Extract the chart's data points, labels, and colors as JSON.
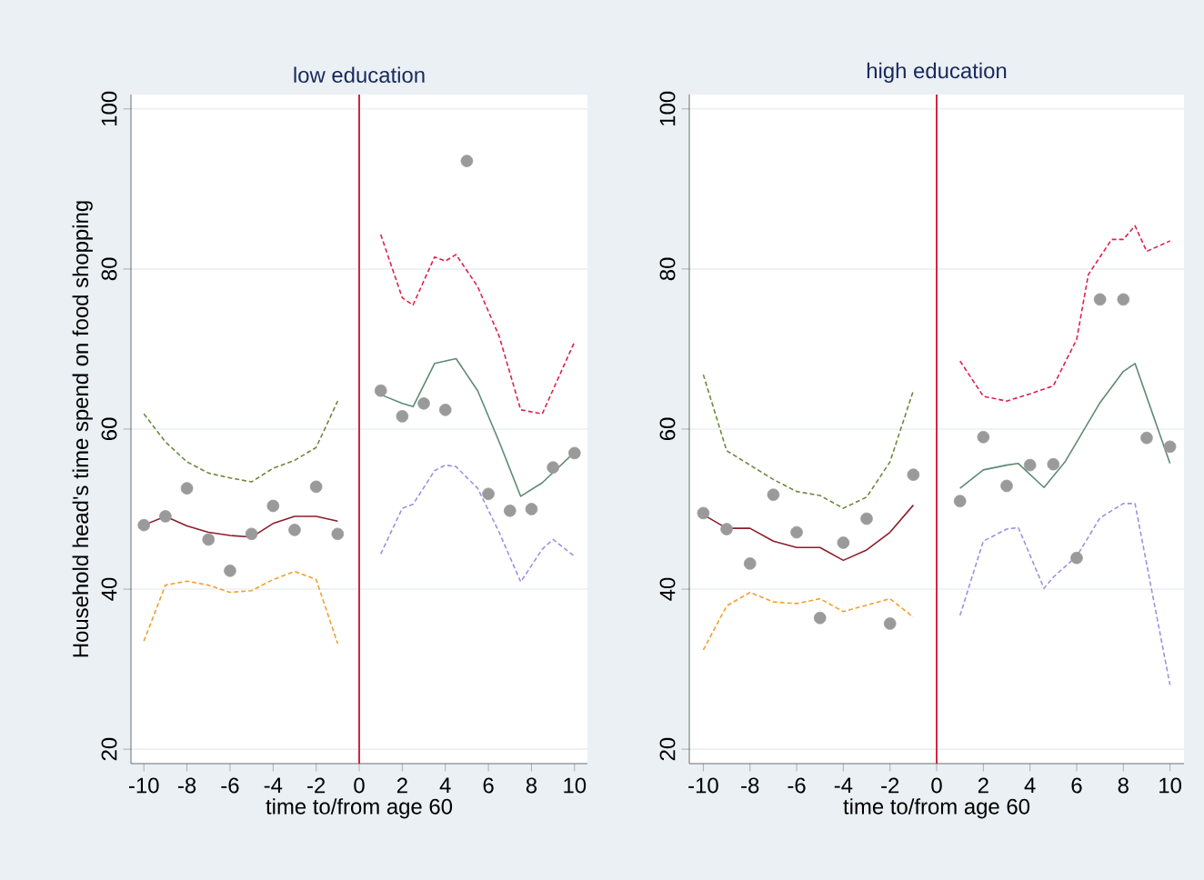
{
  "chart_data": [
    {
      "type": "scatter",
      "title": "low education",
      "xlabel": "time to/from age 60",
      "ylabel": "Household head's time spend on food shopping",
      "xlim": [
        -10.6,
        10.6
      ],
      "ylim": [
        18.2,
        101.8
      ],
      "xticks": [
        -10,
        -8,
        -6,
        -4,
        -2,
        0,
        2,
        4,
        6,
        8,
        10
      ],
      "yticks": [
        20,
        40,
        60,
        80,
        100
      ],
      "grid": "y",
      "ref_lines": [
        {
          "axis": "x",
          "value": 0,
          "color": "#c8102e"
        }
      ],
      "series": [
        {
          "marker": "circle",
          "color": "#9a9a9a",
          "x": [
            -10,
            -9,
            -8,
            -7,
            -6,
            -5,
            -4,
            -3,
            -2,
            -1,
            1,
            2,
            3,
            4,
            5,
            6,
            7,
            8,
            9,
            10
          ],
          "values": [
            48.0,
            49.1,
            52.6,
            46.2,
            42.3,
            46.9,
            50.4,
            47.4,
            52.8,
            46.9,
            64.8,
            61.6,
            63.2,
            62.4,
            93.5,
            51.9,
            49.8,
            50.0,
            55.2,
            57.0
          ]
        },
        {
          "type": "line",
          "marker": "none",
          "line_style": "solid",
          "color": "#8b1e2a",
          "x": [
            -10,
            -9,
            -8,
            -7,
            -6,
            -5,
            -4,
            -3,
            -2,
            -1
          ],
          "values": [
            48.0,
            49.1,
            47.9,
            47.1,
            46.7,
            46.5,
            48.2,
            49.1,
            49.1,
            48.5
          ]
        },
        {
          "type": "line",
          "marker": "none",
          "line_style": "dashed",
          "color": "#6b8a3a",
          "x": [
            -10,
            -9,
            -8,
            -7,
            -6,
            -5,
            -4,
            -3,
            -2,
            -1
          ],
          "values": [
            61.9,
            58.4,
            55.9,
            54.5,
            53.9,
            53.4,
            55.1,
            56.1,
            57.7,
            63.5
          ]
        },
        {
          "type": "line",
          "marker": "none",
          "line_style": "dashed",
          "color": "#f0a030",
          "x": [
            -10,
            -9,
            -8,
            -7,
            -6,
            -5,
            -4,
            -3,
            -2,
            -1
          ],
          "values": [
            33.5,
            40.5,
            41.0,
            40.5,
            39.6,
            39.8,
            41.2,
            42.2,
            41.2,
            33.2
          ]
        },
        {
          "type": "line",
          "marker": "none",
          "line_style": "solid",
          "color": "#5f8a74",
          "x": [
            1,
            2,
            2.5,
            3.5,
            4.5,
            5.5,
            6.5,
            7.5,
            8.5,
            10
          ],
          "values": [
            64.3,
            63.2,
            62.8,
            68.2,
            68.8,
            64.8,
            58.4,
            51.6,
            53.3,
            57.1
          ]
        },
        {
          "type": "line",
          "marker": "none",
          "line_style": "dashed",
          "color": "#e0204a",
          "x": [
            1,
            2,
            2.5,
            3.5,
            4,
            4.5,
            5.5,
            6.5,
            7.5,
            8.5,
            10
          ],
          "values": [
            84.3,
            76.4,
            75.5,
            81.5,
            81.0,
            81.8,
            77.8,
            71.6,
            62.4,
            61.9,
            70.9
          ]
        },
        {
          "type": "line",
          "marker": "none",
          "line_style": "dashed",
          "color": "#a090e0",
          "x": [
            1,
            2,
            2.5,
            3.5,
            4,
            4.5,
            5.5,
            6.5,
            7.5,
            8.5,
            9,
            10
          ],
          "values": [
            44.4,
            50.1,
            50.6,
            54.8,
            55.5,
            55.3,
            52.6,
            47.1,
            40.9,
            45.0,
            46.2,
            44.1
          ]
        }
      ]
    },
    {
      "type": "scatter",
      "title": "high education",
      "xlabel": "time to/from age 60",
      "xlim": [
        -10.6,
        10.6
      ],
      "ylim": [
        18.2,
        101.8
      ],
      "xticks": [
        -10,
        -8,
        -6,
        -4,
        -2,
        0,
        2,
        4,
        6,
        8,
        10
      ],
      "yticks": [
        20,
        40,
        60,
        80,
        100
      ],
      "grid": "y",
      "ref_lines": [
        {
          "axis": "x",
          "value": 0,
          "color": "#c8102e"
        }
      ],
      "series": [
        {
          "marker": "circle",
          "color": "#9a9a9a",
          "x": [
            -10,
            -9,
            -8,
            -7,
            -6,
            -5,
            -4,
            -3,
            -2,
            -1,
            1,
            2,
            3,
            4,
            5,
            6,
            7,
            8,
            9,
            10
          ],
          "values": [
            49.5,
            47.5,
            43.2,
            51.8,
            47.1,
            36.4,
            45.8,
            48.8,
            35.7,
            54.3,
            51.0,
            59.0,
            52.9,
            55.5,
            55.6,
            43.9,
            76.2,
            76.2,
            58.9,
            57.8
          ]
        },
        {
          "type": "line",
          "marker": "none",
          "line_style": "solid",
          "color": "#8b1e2a",
          "x": [
            -10,
            -9,
            -8,
            -7,
            -6,
            -5,
            -4,
            -3,
            -2,
            -1
          ],
          "values": [
            49.3,
            47.6,
            47.6,
            46.0,
            45.2,
            45.2,
            43.6,
            44.9,
            47.1,
            50.5
          ]
        },
        {
          "type": "line",
          "marker": "none",
          "line_style": "dashed",
          "color": "#6b8a3a",
          "x": [
            -10,
            -9,
            -8,
            -7,
            -6,
            -5,
            -4,
            -3,
            -2,
            -1
          ],
          "values": [
            66.8,
            57.3,
            55.5,
            53.7,
            52.2,
            51.7,
            50.1,
            51.5,
            55.9,
            64.8
          ]
        },
        {
          "type": "line",
          "marker": "none",
          "line_style": "dashed",
          "color": "#f0a030",
          "x": [
            -10,
            -9,
            -8,
            -7,
            -6,
            -5,
            -4,
            -3,
            -2,
            -1
          ],
          "values": [
            32.4,
            37.9,
            39.6,
            38.4,
            38.2,
            38.8,
            37.2,
            38.0,
            38.8,
            36.5
          ]
        },
        {
          "type": "line",
          "marker": "none",
          "line_style": "solid",
          "color": "#5f8a74",
          "x": [
            1,
            2,
            3,
            3.5,
            4.6,
            5.5,
            7,
            8,
            8.5,
            10
          ],
          "values": [
            52.6,
            54.9,
            55.5,
            55.7,
            52.7,
            55.9,
            63.3,
            67.2,
            68.2,
            55.7
          ]
        },
        {
          "type": "line",
          "marker": "none",
          "line_style": "dashed",
          "color": "#e0204a",
          "x": [
            1,
            2,
            3,
            4,
            5,
            6,
            6.5,
            7.5,
            8,
            8.5,
            9,
            10
          ],
          "values": [
            68.5,
            64.1,
            63.5,
            64.4,
            65.4,
            71.2,
            79.3,
            83.7,
            83.7,
            85.4,
            82.2,
            83.5
          ]
        },
        {
          "type": "line",
          "marker": "none",
          "line_style": "dashed",
          "color": "#a090e0",
          "x": [
            1,
            2,
            3,
            3.5,
            4.6,
            5,
            6,
            7,
            8,
            8.5,
            10
          ],
          "values": [
            36.7,
            46.0,
            47.5,
            47.7,
            40.1,
            41.5,
            44.1,
            48.9,
            50.7,
            50.7,
            28.0
          ]
        }
      ]
    }
  ]
}
